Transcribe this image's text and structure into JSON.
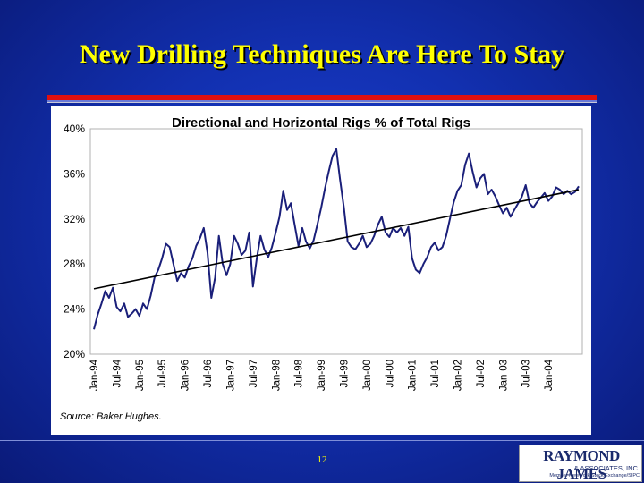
{
  "slide": {
    "title": "New Drilling Techniques Are Here To Stay",
    "page_number": "12"
  },
  "logo": {
    "main": "RAYMOND JAMES",
    "sub": "& ASSOCIATES, INC.",
    "tag": "Member New York Stock Exchange/SIPC"
  },
  "colors": {
    "background": "#1230b0",
    "title": "#ffff00",
    "accent_rule": "#e01010",
    "series_line": "#1a1f7a",
    "trend_line": "#000000"
  },
  "chart_data": {
    "type": "line",
    "title": "Directional and Horizontal Rigs % of Total Rigs",
    "source": "Source: Baker Hughes.",
    "xlabel": "",
    "ylabel": "",
    "ylim": [
      20,
      40
    ],
    "y_ticks": [
      "40%",
      "36%",
      "32%",
      "28%",
      "24%",
      "20%"
    ],
    "y_tick_values": [
      40,
      36,
      32,
      28,
      24,
      20
    ],
    "x_tick_labels": [
      "Jan-94",
      "Jul-94",
      "Jan-95",
      "Jul-95",
      "Jan-96",
      "Jul-96",
      "Jan-97",
      "Jul-97",
      "Jan-98",
      "Jul-98",
      "Jan-99",
      "Jul-99",
      "Jan-00",
      "Jul-00",
      "Jan-01",
      "Jul-01",
      "Jan-02",
      "Jul-02",
      "Jan-03",
      "Jul-03",
      "Jan-04"
    ],
    "xlim": [
      "1994-01",
      "2004-09"
    ],
    "grid": false,
    "legend": "none",
    "series": [
      {
        "points": [
          [
            "1994-01",
            22.2
          ],
          [
            "1994-02",
            23.5
          ],
          [
            "1994-03",
            24.5
          ],
          [
            "1994-04",
            25.6
          ],
          [
            "1994-05",
            25.0
          ],
          [
            "1994-06",
            25.9
          ],
          [
            "1994-07",
            24.2
          ],
          [
            "1994-08",
            23.8
          ],
          [
            "1994-09",
            24.5
          ],
          [
            "1994-10",
            23.3
          ],
          [
            "1994-11",
            23.6
          ],
          [
            "1994-12",
            24.0
          ],
          [
            "1995-01",
            23.4
          ],
          [
            "1995-02",
            24.5
          ],
          [
            "1995-03",
            24.0
          ],
          [
            "1995-04",
            25.2
          ],
          [
            "1995-05",
            26.8
          ],
          [
            "1995-06",
            27.5
          ],
          [
            "1995-07",
            28.5
          ],
          [
            "1995-08",
            29.8
          ],
          [
            "1995-09",
            29.5
          ],
          [
            "1995-10",
            28.0
          ],
          [
            "1995-11",
            26.5
          ],
          [
            "1995-12",
            27.2
          ],
          [
            "1996-01",
            26.8
          ],
          [
            "1996-02",
            27.8
          ],
          [
            "1996-03",
            28.5
          ],
          [
            "1996-04",
            29.6
          ],
          [
            "1996-05",
            30.3
          ],
          [
            "1996-06",
            31.2
          ],
          [
            "1996-07",
            29.0
          ],
          [
            "1996-08",
            25.0
          ],
          [
            "1996-09",
            26.8
          ],
          [
            "1996-10",
            30.5
          ],
          [
            "1996-11",
            28.0
          ],
          [
            "1996-12",
            27.0
          ],
          [
            "1997-01",
            28.0
          ],
          [
            "1997-02",
            30.5
          ],
          [
            "1997-03",
            29.8
          ],
          [
            "1997-04",
            28.8
          ],
          [
            "1997-05",
            29.2
          ],
          [
            "1997-06",
            30.8
          ],
          [
            "1997-07",
            26.0
          ],
          [
            "1997-08",
            28.5
          ],
          [
            "1997-09",
            30.5
          ],
          [
            "1997-10",
            29.3
          ],
          [
            "1997-11",
            28.6
          ],
          [
            "1997-12",
            29.5
          ],
          [
            "1998-01",
            30.8
          ],
          [
            "1998-02",
            32.2
          ],
          [
            "1998-03",
            34.5
          ],
          [
            "1998-04",
            32.8
          ],
          [
            "1998-05",
            33.4
          ],
          [
            "1998-06",
            31.5
          ],
          [
            "1998-07",
            29.6
          ],
          [
            "1998-08",
            31.2
          ],
          [
            "1998-09",
            30.0
          ],
          [
            "1998-10",
            29.4
          ],
          [
            "1998-11",
            30.1
          ],
          [
            "1998-12",
            31.5
          ],
          [
            "1999-01",
            33.0
          ],
          [
            "1999-02",
            34.7
          ],
          [
            "1999-03",
            36.2
          ],
          [
            "1999-04",
            37.6
          ],
          [
            "1999-05",
            38.2
          ],
          [
            "1999-06",
            35.5
          ],
          [
            "1999-07",
            33.0
          ],
          [
            "1999-08",
            30.0
          ],
          [
            "1999-09",
            29.5
          ],
          [
            "1999-10",
            29.3
          ],
          [
            "1999-11",
            29.8
          ],
          [
            "1999-12",
            30.5
          ],
          [
            "2000-01",
            29.5
          ],
          [
            "2000-02",
            29.8
          ],
          [
            "2000-03",
            30.5
          ],
          [
            "2000-04",
            31.5
          ],
          [
            "2000-05",
            32.2
          ],
          [
            "2000-06",
            30.8
          ],
          [
            "2000-07",
            30.4
          ],
          [
            "2000-08",
            31.2
          ],
          [
            "2000-09",
            30.8
          ],
          [
            "2000-10",
            31.2
          ],
          [
            "2000-11",
            30.5
          ],
          [
            "2000-12",
            31.3
          ],
          [
            "2001-01",
            28.5
          ],
          [
            "2001-02",
            27.5
          ],
          [
            "2001-03",
            27.2
          ],
          [
            "2001-04",
            28.0
          ],
          [
            "2001-05",
            28.6
          ],
          [
            "2001-06",
            29.5
          ],
          [
            "2001-07",
            29.9
          ],
          [
            "2001-08",
            29.2
          ],
          [
            "2001-09",
            29.5
          ],
          [
            "2001-10",
            30.5
          ],
          [
            "2001-11",
            32.0
          ],
          [
            "2001-12",
            33.5
          ],
          [
            "2002-01",
            34.5
          ],
          [
            "2002-02",
            35.0
          ],
          [
            "2002-03",
            36.8
          ],
          [
            "2002-04",
            37.8
          ],
          [
            "2002-05",
            36.2
          ],
          [
            "2002-06",
            34.8
          ],
          [
            "2002-07",
            35.6
          ],
          [
            "2002-08",
            36.0
          ],
          [
            "2002-09",
            34.2
          ],
          [
            "2002-10",
            34.6
          ],
          [
            "2002-11",
            34.0
          ],
          [
            "2002-12",
            33.2
          ],
          [
            "2003-01",
            32.5
          ],
          [
            "2003-02",
            33.0
          ],
          [
            "2003-03",
            32.2
          ],
          [
            "2003-04",
            32.8
          ],
          [
            "2003-05",
            33.4
          ],
          [
            "2003-06",
            34.0
          ],
          [
            "2003-07",
            35.0
          ],
          [
            "2003-08",
            33.4
          ],
          [
            "2003-09",
            33.0
          ],
          [
            "2003-10",
            33.5
          ],
          [
            "2003-11",
            33.9
          ],
          [
            "2003-12",
            34.3
          ],
          [
            "2004-01",
            33.6
          ],
          [
            "2004-02",
            34.0
          ],
          [
            "2004-03",
            34.8
          ],
          [
            "2004-04",
            34.6
          ],
          [
            "2004-05",
            34.2
          ],
          [
            "2004-06",
            34.5
          ],
          [
            "2004-07",
            34.2
          ],
          [
            "2004-08",
            34.4
          ],
          [
            "2004-09",
            34.9
          ]
        ]
      },
      {
        "trend": true,
        "points": [
          [
            "1994-01",
            25.8
          ],
          [
            "2004-09",
            34.6
          ]
        ]
      }
    ]
  }
}
